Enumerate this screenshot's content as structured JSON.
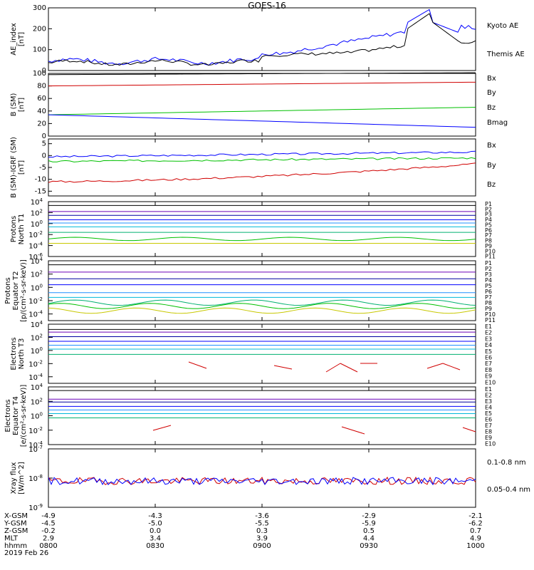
{
  "title": "GOES-16",
  "colors": {
    "black": "#000000",
    "blue": "#0000ff",
    "green": "#00c000",
    "red": "#d00000",
    "purple": "#6a00b8",
    "cyan": "#00b8d8",
    "teal": "#00b070",
    "yellow": "#c8c800",
    "orange": "#e08000",
    "navy": "#0000a0",
    "ltblue": "#2090ff"
  },
  "chart_data": [
    {
      "type": "line",
      "ylabel": "AE_index\n[nT]",
      "ylim": [
        0,
        300
      ],
      "yticks": [
        "300",
        "200",
        "100",
        "0"
      ],
      "series": [
        {
          "name": "Kyoto AE",
          "color": "#0000ff"
        },
        {
          "name": "Themis AE",
          "color": "#000000"
        }
      ]
    },
    {
      "type": "line",
      "ylabel": "B (SM)\n[nT]",
      "ylim": [
        0,
        100
      ],
      "yticks": [
        "100",
        "80",
        "60",
        "40",
        "20",
        "0"
      ],
      "series": [
        {
          "name": "Bx",
          "color": "#0000ff"
        },
        {
          "name": "By",
          "color": "#00c000"
        },
        {
          "name": "Bz",
          "color": "#d00000"
        },
        {
          "name": "Bmag",
          "color": "#000000"
        }
      ]
    },
    {
      "type": "line",
      "ylabel": "B (SM)-IGRF (SM)\n[nT]",
      "ylim": [
        -17,
        7
      ],
      "yticks": [
        "5",
        "0",
        "-5",
        "-10",
        "-15"
      ],
      "series": [
        {
          "name": "Bx",
          "color": "#0000ff"
        },
        {
          "name": "By",
          "color": "#00c000"
        },
        {
          "name": "Bz",
          "color": "#d00000"
        }
      ]
    },
    {
      "type": "line",
      "ylabel": "Protons\nNorth T1",
      "scale": "log",
      "yticks": [
        "10^4",
        "10^2",
        "10^0",
        "10^-2",
        "10^-4",
        "10^-6"
      ],
      "legend": [
        "P1",
        "P2",
        "P3",
        "P4",
        "P5",
        "P6",
        "P7",
        "P8",
        "P9",
        "P10",
        "P11"
      ]
    },
    {
      "type": "line",
      "ylabel": "Protons\nEquator T2\n[p/(cm²-s-sr-keV)]",
      "scale": "log",
      "yticks": [
        "10^4",
        "10^2",
        "10^0",
        "10^-2",
        "10^-4"
      ],
      "legend": [
        "P1",
        "P2",
        "P3",
        "P4",
        "P5",
        "P6",
        "P7",
        "P8",
        "P9",
        "P10",
        "P11"
      ]
    },
    {
      "type": "line",
      "ylabel": "Electrons\nNorth T3",
      "scale": "log",
      "yticks": [
        "10^4",
        "10^2",
        "10^0",
        "10^-2",
        "10^-4"
      ],
      "legend": [
        "E1",
        "E2",
        "E3",
        "E4",
        "E5",
        "E6",
        "E7",
        "E8",
        "E9",
        "E10"
      ]
    },
    {
      "type": "line",
      "ylabel": "Electrons\nEquator T4\n[e/(cm²-s-sr-keV)]",
      "scale": "log",
      "yticks": [
        "10^4",
        "10^2",
        "10^0",
        "10^-2",
        "10^-4"
      ],
      "legend": [
        "E1",
        "E2",
        "E3",
        "E4",
        "E5",
        "E6",
        "E7",
        "E8",
        "E9",
        "E10"
      ]
    },
    {
      "type": "line",
      "ylabel": "Xray flux\n[W/m^2]",
      "scale": "log",
      "yticks": [
        "10^-7",
        "10^-8",
        "10^-9"
      ],
      "series": [
        {
          "name": "0.1-0.8 nm",
          "color": "#d00000"
        },
        {
          "name": "0.05-0.4 nm",
          "color": "#0000ff"
        }
      ]
    }
  ],
  "x_axis": {
    "rows": [
      {
        "label": "X-GSM",
        "values": [
          "-4.9",
          "-4.3",
          "-3.6",
          "-2.9",
          "-2.1"
        ]
      },
      {
        "label": "Y-GSM",
        "values": [
          "-4.5",
          "-5.0",
          "-5.5",
          "-5.9",
          "-6.2"
        ]
      },
      {
        "label": "Z-GSM",
        "values": [
          "-0.2",
          "0.0",
          "0.3",
          "0.5",
          "0.7"
        ]
      },
      {
        "label": "MLT",
        "values": [
          "2.9",
          "3.4",
          "3.9",
          "4.4",
          "4.9"
        ]
      },
      {
        "label": "hhmm",
        "values": [
          "0800",
          "0830",
          "0900",
          "0930",
          "1000"
        ]
      }
    ],
    "date": "2019 Feb 26"
  }
}
